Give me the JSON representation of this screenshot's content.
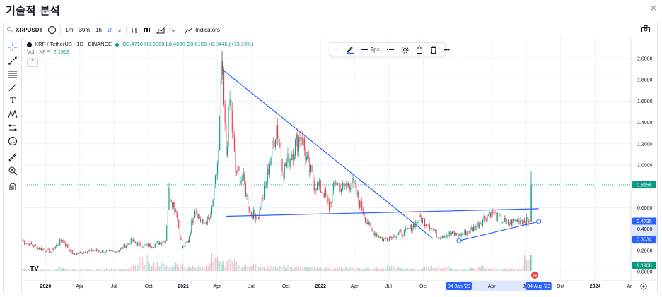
{
  "page": {
    "title": "기술적 분석",
    "close_label": "×"
  },
  "toolbar": {
    "symbol": "XRPUSDT",
    "add_label": "+",
    "intervals": [
      "1m",
      "30m",
      "1h"
    ],
    "active_interval": "D",
    "dropdown": "⌄",
    "indicators_label": "Indicators",
    "camera_icon": "camera-icon"
  },
  "legend": {
    "series_title": "XRP / TetherUS · 1D · BINANCE",
    "open": "O0.4710",
    "high": "H0.9380",
    "low": "L0.4695",
    "close": "C0.8156",
    "change": "+0.3446 (+73.16%)",
    "volume_label": "Vol · XRP",
    "volume_value": "2.1968"
  },
  "drawing_toolbar": {
    "width_label": "2px"
  },
  "watermark": "TV",
  "colors": {
    "up": "#089981",
    "down": "#f23645",
    "trendline": "#2962ff",
    "last_price": "#089981",
    "selection": "#2962ff"
  },
  "chart_data": {
    "type": "candlestick",
    "title": "",
    "series": [
      {
        "name": "XRP / TetherUS",
        "points": [
          [
            "2019-11-01",
            0.29
          ],
          [
            "2019-12-15",
            0.22
          ],
          [
            "2020-01-15",
            0.19
          ],
          [
            "2020-02-15",
            0.3
          ],
          [
            "2020-03-15",
            0.16
          ],
          [
            "2020-04-15",
            0.19
          ],
          [
            "2020-05-15",
            0.2
          ],
          [
            "2020-06-15",
            0.18
          ],
          [
            "2020-07-15",
            0.2
          ],
          [
            "2020-08-15",
            0.29
          ],
          [
            "2020-09-15",
            0.24
          ],
          [
            "2020-10-15",
            0.25
          ],
          [
            "2020-11-15",
            0.3
          ],
          [
            "2020-11-24",
            0.75
          ],
          [
            "2020-12-15",
            0.55
          ],
          [
            "2020-12-29",
            0.22
          ],
          [
            "2021-01-15",
            0.29
          ],
          [
            "2021-02-01",
            0.6
          ],
          [
            "2021-02-20",
            0.45
          ],
          [
            "2021-03-15",
            0.5
          ],
          [
            "2021-04-05",
            1.1
          ],
          [
            "2021-04-14",
            1.96
          ],
          [
            "2021-04-25",
            1.1
          ],
          [
            "2021-05-05",
            1.6
          ],
          [
            "2021-05-20",
            0.95
          ],
          [
            "2021-06-10",
            0.85
          ],
          [
            "2021-06-28",
            0.55
          ],
          [
            "2021-07-20",
            0.52
          ],
          [
            "2021-08-10",
            0.85
          ],
          [
            "2021-09-06",
            1.38
          ],
          [
            "2021-09-25",
            0.95
          ],
          [
            "2021-10-15",
            1.1
          ],
          [
            "2021-11-10",
            1.3
          ],
          [
            "2021-11-25",
            1.05
          ],
          [
            "2021-12-15",
            0.83
          ],
          [
            "2022-01-10",
            0.75
          ],
          [
            "2022-01-24",
            0.6
          ],
          [
            "2022-02-10",
            0.85
          ],
          [
            "2022-03-01",
            0.78
          ],
          [
            "2022-03-25",
            0.85
          ],
          [
            "2022-04-10",
            0.7
          ],
          [
            "2022-05-12",
            0.4
          ],
          [
            "2022-06-18",
            0.3
          ],
          [
            "2022-07-15",
            0.34
          ],
          [
            "2022-08-15",
            0.37
          ],
          [
            "2022-09-23",
            0.5
          ],
          [
            "2022-10-15",
            0.45
          ],
          [
            "2022-11-09",
            0.33
          ],
          [
            "2022-12-15",
            0.36
          ],
          [
            "2023-01-04",
            0.34
          ],
          [
            "2023-02-10",
            0.4
          ],
          [
            "2023-03-29",
            0.56
          ],
          [
            "2023-04-20",
            0.5
          ],
          [
            "2023-05-15",
            0.45
          ],
          [
            "2023-06-15",
            0.49
          ],
          [
            "2023-07-12",
            0.47
          ],
          [
            "2023-07-13",
            0.82
          ]
        ]
      },
      {
        "name": "Vol · XRP",
        "type": "bar",
        "relative_values": [
          0.15,
          0.1,
          0.12,
          0.1,
          0.2,
          0.12,
          0.1,
          0.12,
          0.1,
          0.15,
          0.12,
          0.12,
          0.4,
          0.85,
          0.5,
          0.6,
          0.3,
          0.5,
          0.35,
          0.3,
          0.5,
          1.0,
          0.6,
          0.8,
          0.5,
          0.4,
          0.4,
          0.3,
          0.35,
          0.4,
          0.3,
          0.25,
          0.3,
          0.25,
          0.2,
          0.2,
          0.25,
          0.2,
          0.2,
          0.2,
          0.15,
          0.3,
          0.25,
          0.15,
          0.12,
          0.3,
          0.2,
          0.25,
          0.12,
          0.15,
          0.2,
          0.35,
          0.2,
          0.15,
          0.15,
          0.2,
          0.9
        ]
      }
    ],
    "trendlines": [
      {
        "name": "descending-resistance",
        "from": [
          "2021-04-14",
          1.9
        ],
        "to": [
          "2022-10-27",
          0.31
        ]
      },
      {
        "name": "horizontal-resistance",
        "from": [
          "2021-04-25",
          0.52
        ],
        "to": [
          "2023-08-04",
          0.59
        ]
      },
      {
        "name": "ascending-support",
        "from": [
          "2023-01-04",
          0.29
        ],
        "to": [
          "2023-08-04",
          0.47
        ],
        "selected": true
      }
    ],
    "xaxis": {
      "ticks": [
        "2020",
        "Apr",
        "Jul",
        "Oct",
        "2021",
        "Apr",
        "Jul",
        "Oct",
        "2022",
        "Apr",
        "Jul",
        "Oct",
        "Jan",
        "Apr",
        "Jul",
        "Oct",
        "2024",
        "Ar"
      ],
      "range": [
        "2019-11-01",
        "2024-04-05"
      ],
      "highlighted": [
        "04 Jan '23",
        "04 Aug '23"
      ]
    },
    "yaxis": {
      "ticks": [
        "2.0000",
        "1.8000",
        "1.6000",
        "1.4000",
        "1.2000",
        "1.0000",
        "0.6000",
        "0.4000",
        "0.2000",
        "0.0000"
      ],
      "range": [
        0,
        2.0
      ],
      "labels": [
        {
          "value": 0.8156,
          "text": "0.8156"
        },
        {
          "value": 0.4735,
          "text": "0.4735"
        },
        {
          "value": 0.3034,
          "text": "0.3034"
        },
        {
          "value": 2.1968,
          "text": "2.1968"
        }
      ]
    },
    "grid": true,
    "legend_position": "top-left"
  }
}
